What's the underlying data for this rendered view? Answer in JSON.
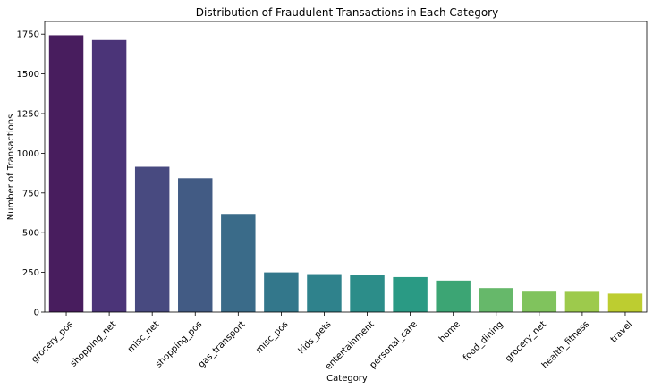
{
  "chart_data": {
    "type": "bar",
    "title": "Distribution of Fraudulent Transactions in Each Category",
    "xlabel": "Category",
    "ylabel": "Number of Transactions",
    "categories": [
      "grocery_pos",
      "shopping_net",
      "misc_net",
      "shopping_pos",
      "gas_transport",
      "misc_pos",
      "kids_pets",
      "entertainment",
      "personal_care",
      "home",
      "food_dining",
      "grocery_net",
      "health_fitness",
      "travel"
    ],
    "values": [
      1743,
      1713,
      915,
      843,
      618,
      250,
      239,
      233,
      220,
      198,
      151,
      134,
      133,
      116
    ],
    "ylim": [
      0,
      1830
    ],
    "yticks": [
      0,
      250,
      500,
      750,
      1000,
      1250,
      1500,
      1750
    ],
    "colors": [
      "#481d5e",
      "#4b3478",
      "#484a80",
      "#425b84",
      "#3a6b89",
      "#33778b",
      "#2f828c",
      "#2c8d89",
      "#2a9a84",
      "#3ca574",
      "#66b86a",
      "#80c35d",
      "#9dca4c",
      "#bdcd30"
    ],
    "grid": false,
    "legend": "none"
  }
}
